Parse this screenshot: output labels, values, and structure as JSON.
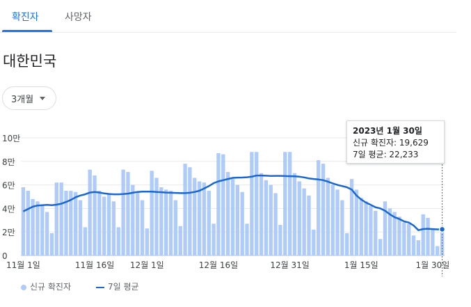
{
  "tabs": [
    {
      "label": "확진자"
    },
    {
      "label": "사망자"
    }
  ],
  "region_title": "대한민국",
  "range_select": {
    "value": "3개월"
  },
  "tooltip": {
    "date": "2023년 1월 30일",
    "cases_line": "신규 확진자: 19,629",
    "avg_line": "7일 평균: 22,233"
  },
  "legend": {
    "cases": "신규 확진자",
    "avg": "7일 평균"
  },
  "colors": {
    "bar": "#aecbfa",
    "line": "#1967d2",
    "accent": "#1a73e8"
  },
  "chart_data": {
    "type": "bar",
    "title": "",
    "xlabel": "",
    "ylabel": "",
    "ylim": [
      0,
      100000
    ],
    "y_ticks": [
      {
        "value": 0,
        "label": "0"
      },
      {
        "value": 20000,
        "label": "2만"
      },
      {
        "value": 40000,
        "label": "4만"
      },
      {
        "value": 60000,
        "label": "6만"
      },
      {
        "value": 80000,
        "label": "8만"
      },
      {
        "value": 100000,
        "label": "10만"
      }
    ],
    "x_ticks": [
      {
        "index": 0,
        "label": "11월 1일"
      },
      {
        "index": 15,
        "label": "11월 16일"
      },
      {
        "index": 26,
        "label": "12월 1일"
      },
      {
        "index": 41,
        "label": "12월 16일"
      },
      {
        "index": 56,
        "label": "12월 31일"
      },
      {
        "index": 71,
        "label": "1월 15일"
      },
      {
        "index": 86,
        "label": "1월 30일"
      }
    ],
    "grid": true,
    "legend_position": "bottom-left",
    "series": [
      {
        "name": "신규 확진자",
        "type": "bar",
        "values": [
          58000,
          55000,
          48000,
          46000,
          43000,
          37000,
          19000,
          62000,
          62000,
          55000,
          55000,
          54000,
          47000,
          24000,
          73000,
          68000,
          55000,
          50000,
          52000,
          46000,
          24000,
          73000,
          71000,
          60000,
          54000,
          47000,
          23000,
          72000,
          66000,
          58000,
          56000,
          55000,
          47000,
          25000,
          78000,
          75000,
          66000,
          63000,
          62000,
          55000,
          27000,
          87000,
          86000,
          71000,
          65000,
          60000,
          54000,
          27000,
          88000,
          88000,
          70000,
          64000,
          60000,
          53000,
          26000,
          88000,
          88000,
          70000,
          63000,
          57000,
          51000,
          22000,
          81000,
          78000,
          66000,
          60000,
          56000,
          47000,
          19000,
          65000,
          56000,
          49000,
          46000,
          42000,
          38000,
          14000,
          46000,
          40000,
          37000,
          33000,
          28000,
          27000,
          17000,
          13000,
          35000,
          32000,
          23000,
          8000,
          20000
        ]
      },
      {
        "name": "7일 평균",
        "type": "line",
        "values": [
          37500,
          39500,
          41500,
          42500,
          42800,
          43000,
          42800,
          43200,
          44000,
          45500,
          47200,
          49500,
          51000,
          52000,
          53500,
          54000,
          53500,
          52800,
          52300,
          52000,
          52000,
          52200,
          52600,
          53300,
          54000,
          54300,
          54300,
          54300,
          54000,
          53800,
          53500,
          53300,
          53200,
          53000,
          53000,
          53300,
          54000,
          55000,
          57000,
          59000,
          61500,
          63000,
          64000,
          65000,
          66000,
          66200,
          66300,
          66500,
          67000,
          68000,
          68000,
          67800,
          67600,
          67700,
          67700,
          67500,
          67400,
          67300,
          67000,
          66400,
          65500,
          65000,
          64600,
          64000,
          62800,
          61300,
          60000,
          59000,
          58000,
          56000,
          51000,
          47500,
          45000,
          43000,
          41000,
          40000,
          38000,
          35000,
          32500,
          31000,
          29000,
          28000,
          25500,
          21500,
          22500,
          22700,
          22400,
          22200,
          22233
        ]
      }
    ]
  }
}
